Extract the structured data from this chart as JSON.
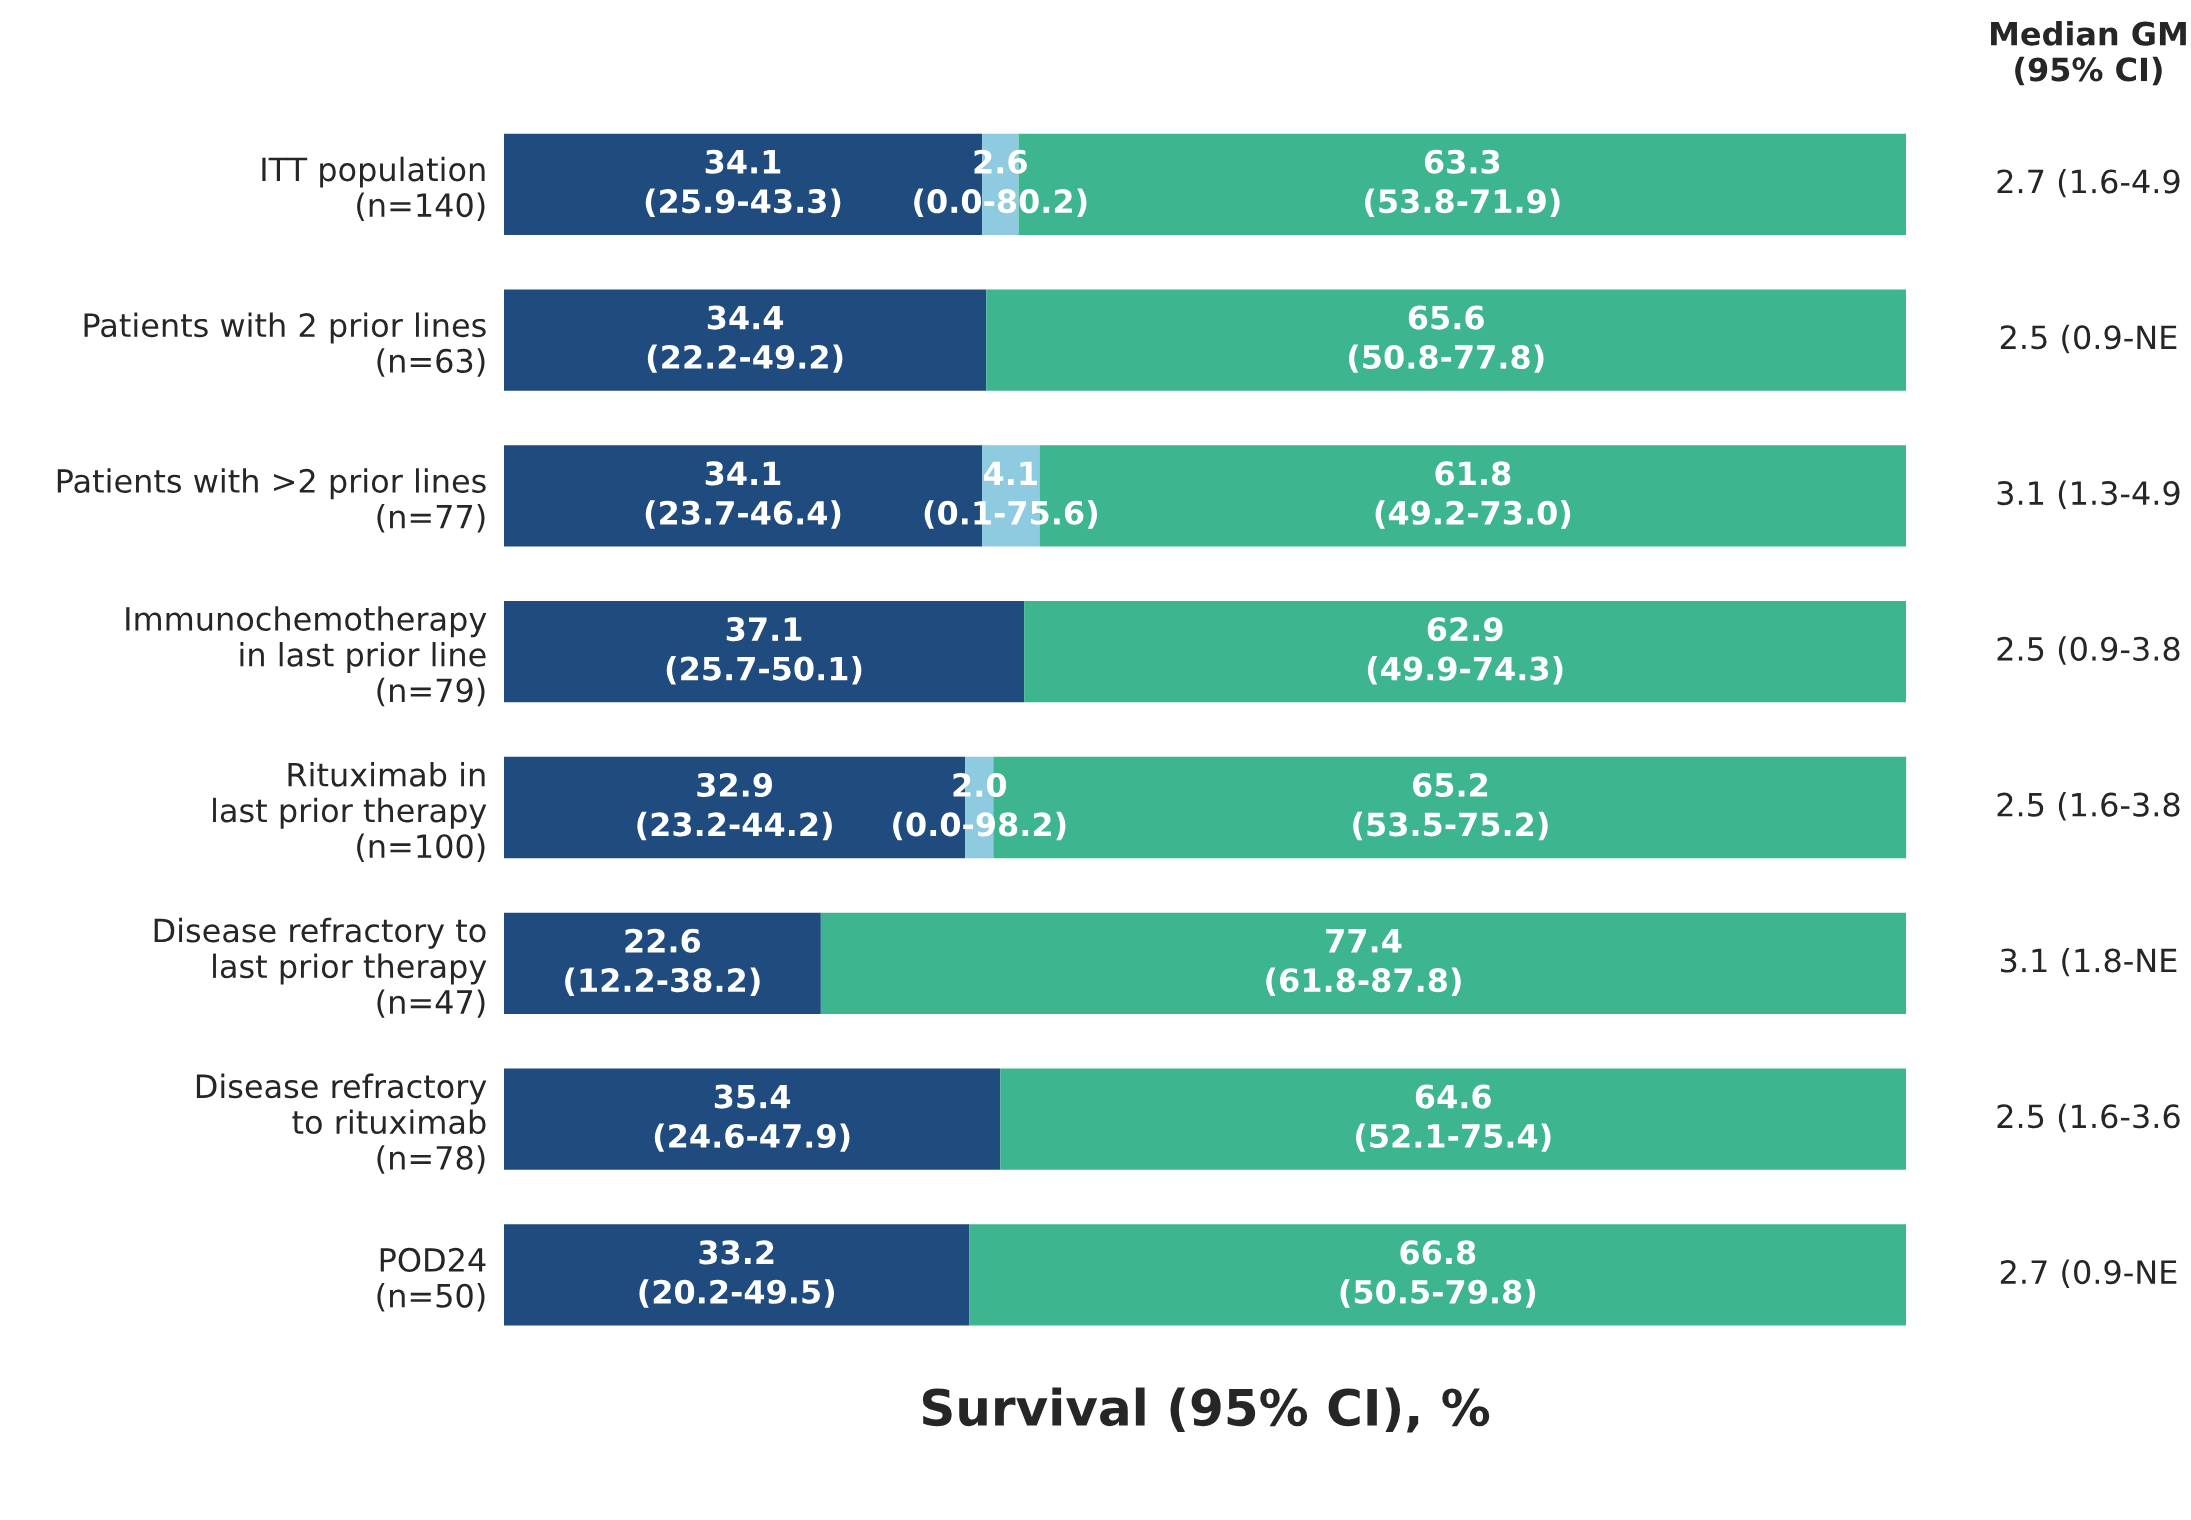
{
  "chart_data": {
    "type": "bar",
    "orientation": "horizontal",
    "stacked": true,
    "xlim": [
      0,
      100
    ],
    "tick_labels": "y",
    "grid": false,
    "xlabel": "Survival (95% CI), %",
    "categories": [
      "ITT population\n(n=140)",
      "Patients with 2 prior lines\n(n=63)",
      "Patients with >2 prior lines\n(n=77)",
      "Immunochemotherapy\nin last prior line\n(n=79)",
      "Rituximab in\nlast prior therapy\n(n=100)",
      "Disease refractory to\nlast prior therapy\n(n=47)",
      "Disease refractory\nto rituximab\n(n=78)",
      "POD24\n(n=50)"
    ],
    "series": [
      {
        "color": "#1f4b7e",
        "values": [
          34.1,
          34.4,
          34.1,
          37.1,
          32.9,
          22.6,
          35.4,
          33.2
        ],
        "value_labels": [
          "34.1\n(25.9-43.3)",
          "34.4\n(22.2-49.2)",
          "34.1\n(23.7-46.4)",
          "37.1\n(25.7-50.1)",
          "32.9\n(23.2-44.2)",
          "22.6\n(12.2-38.2)",
          "35.4\n(24.6-47.9)",
          "33.2\n(20.2-49.5)"
        ]
      },
      {
        "color": "#8ecae0",
        "values": [
          2.6,
          null,
          4.1,
          null,
          2.0,
          null,
          null,
          null
        ],
        "value_labels": [
          "2.6\n(0.0-80.2)",
          null,
          "4.1\n(0.1-75.6)",
          null,
          "2.0\n(0.0-98.2)",
          null,
          null,
          null
        ]
      },
      {
        "color": "#3db58f",
        "values": [
          63.3,
          65.6,
          61.8,
          62.9,
          65.2,
          77.4,
          64.6,
          66.8
        ],
        "value_labels": [
          "63.3\n(53.8-71.9)",
          "65.6\n(50.8-77.8)",
          "61.8\n(49.2-73.0)",
          "62.9\n(49.9-74.3)",
          "65.2\n(53.5-75.2)",
          "77.4\n(61.8-87.8)",
          "64.6\n(52.1-75.4)",
          "66.8\n(50.5-79.8)"
        ]
      }
    ],
    "annotations": [
      "Median GM\n(95% CI)",
      "2.7 (1.6-4.9",
      "2.5 (0.9-NE",
      "3.1 (1.3-4.9",
      "2.5 (0.9-3.8",
      "2.5 (1.6-3.8",
      "3.1 (1.8-NE",
      "2.5 (1.6-3.6",
      "2.7 (0.9-NE"
    ]
  }
}
